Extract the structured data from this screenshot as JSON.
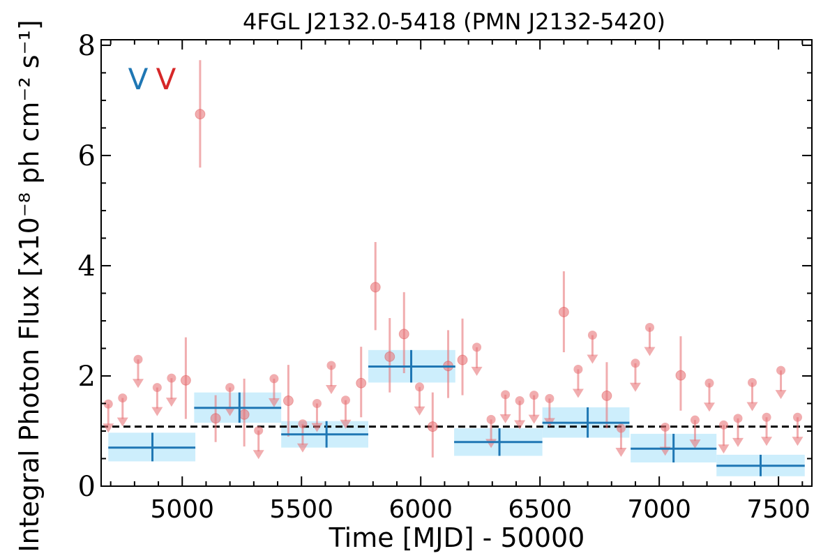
{
  "chart_data": {
    "type": "scatter",
    "title": "4FGL J2132.0-5418 (PMN J2132-5420)",
    "xlabel": "Time [MJD] - 50000",
    "ylabel": "Integral Photon Flux [x10⁻⁸ ph cm⁻² s⁻¹]",
    "xlim": [
      4660,
      7640
    ],
    "ylim": [
      0,
      8.1
    ],
    "xticks": [
      5000,
      5500,
      6000,
      6500,
      7000,
      7500
    ],
    "yticks": [
      0,
      2,
      4,
      6,
      8
    ],
    "grid": false,
    "annotations": [
      {
        "text": "V",
        "color": "#1f77b4"
      },
      {
        "text": "V",
        "color": "#d62728"
      }
    ],
    "mean_flux": 1.08,
    "colors": {
      "long_bin": "#1f77b4",
      "long_band": "#cdeefc",
      "short_bin": "#e8767a",
      "mean_line": "#000000"
    },
    "series": [
      {
        "points": [
          {
            "x": 4875,
            "y": 0.7,
            "xlo": 4690,
            "xhi": 5055,
            "ylo": 0.45,
            "yhi": 0.97
          },
          {
            "x": 5240,
            "y": 1.42,
            "xlo": 5050,
            "xhi": 5415,
            "ylo": 1.15,
            "yhi": 1.7
          },
          {
            "x": 5605,
            "y": 0.94,
            "xlo": 5415,
            "xhi": 5780,
            "ylo": 0.7,
            "yhi": 1.18
          },
          {
            "x": 5960,
            "y": 2.17,
            "xlo": 5780,
            "xhi": 6145,
            "ylo": 1.88,
            "yhi": 2.47
          },
          {
            "x": 6330,
            "y": 0.8,
            "xlo": 6140,
            "xhi": 6510,
            "ylo": 0.55,
            "yhi": 1.05
          },
          {
            "x": 6700,
            "y": 1.15,
            "xlo": 6510,
            "xhi": 6875,
            "ylo": 0.88,
            "yhi": 1.43
          },
          {
            "x": 7060,
            "y": 0.68,
            "xlo": 6880,
            "xhi": 7240,
            "ylo": 0.43,
            "yhi": 0.95
          },
          {
            "x": 7425,
            "y": 0.37,
            "xlo": 7240,
            "xhi": 7610,
            "ylo": 0.18,
            "yhi": 0.57
          }
        ]
      },
      {
        "detections": [
          {
            "x": 5015,
            "y": 1.92,
            "lo": 1.22,
            "hi": 2.7
          },
          {
            "x": 5075,
            "y": 6.75,
            "lo": 5.78,
            "hi": 7.73
          },
          {
            "x": 5140,
            "y": 1.23,
            "lo": 0.8,
            "hi": 1.65
          },
          {
            "x": 5260,
            "y": 1.3,
            "lo": 0.72,
            "hi": 1.95
          },
          {
            "x": 5445,
            "y": 1.55,
            "lo": 0.9,
            "hi": 2.2
          },
          {
            "x": 5750,
            "y": 1.87,
            "lo": 1.25,
            "hi": 2.53
          },
          {
            "x": 5810,
            "y": 3.61,
            "lo": 2.83,
            "hi": 4.43
          },
          {
            "x": 5870,
            "y": 2.35,
            "lo": 1.7,
            "hi": 3.05
          },
          {
            "x": 5930,
            "y": 2.76,
            "lo": 2.05,
            "hi": 3.52
          },
          {
            "x": 6050,
            "y": 1.08,
            "lo": 0.52,
            "hi": 1.7
          },
          {
            "x": 6115,
            "y": 2.18,
            "lo": 1.6,
            "hi": 2.83
          },
          {
            "x": 6175,
            "y": 2.29,
            "lo": 1.65,
            "hi": 3.04
          },
          {
            "x": 6600,
            "y": 3.16,
            "lo": 2.43,
            "hi": 3.9
          },
          {
            "x": 6780,
            "y": 1.64,
            "lo": 1.05,
            "hi": 2.25
          },
          {
            "x": 7090,
            "y": 2.01,
            "lo": 1.37,
            "hi": 2.72
          }
        ],
        "upper_limits": [
          {
            "x": 4690,
            "y": 1.49
          },
          {
            "x": 4750,
            "y": 1.6
          },
          {
            "x": 4815,
            "y": 2.3
          },
          {
            "x": 4895,
            "y": 1.79
          },
          {
            "x": 4955,
            "y": 1.96
          },
          {
            "x": 5200,
            "y": 1.79
          },
          {
            "x": 5320,
            "y": 1.01
          },
          {
            "x": 5385,
            "y": 1.95
          },
          {
            "x": 5505,
            "y": 1.13
          },
          {
            "x": 5565,
            "y": 1.5
          },
          {
            "x": 5625,
            "y": 2.19
          },
          {
            "x": 5685,
            "y": 1.56
          },
          {
            "x": 5995,
            "y": 1.8
          },
          {
            "x": 6235,
            "y": 2.52
          },
          {
            "x": 6295,
            "y": 1.21
          },
          {
            "x": 6355,
            "y": 1.66
          },
          {
            "x": 6415,
            "y": 1.55
          },
          {
            "x": 6475,
            "y": 1.65
          },
          {
            "x": 6540,
            "y": 1.59
          },
          {
            "x": 6660,
            "y": 2.12
          },
          {
            "x": 6720,
            "y": 2.74
          },
          {
            "x": 6840,
            "y": 1.05
          },
          {
            "x": 6900,
            "y": 2.23
          },
          {
            "x": 6960,
            "y": 2.88
          },
          {
            "x": 7025,
            "y": 1.07
          },
          {
            "x": 7150,
            "y": 1.2
          },
          {
            "x": 7210,
            "y": 1.87
          },
          {
            "x": 7270,
            "y": 1.11
          },
          {
            "x": 7330,
            "y": 1.23
          },
          {
            "x": 7390,
            "y": 1.88
          },
          {
            "x": 7450,
            "y": 1.25
          },
          {
            "x": 7510,
            "y": 2.1
          },
          {
            "x": 7580,
            "y": 1.25
          }
        ]
      }
    ]
  }
}
